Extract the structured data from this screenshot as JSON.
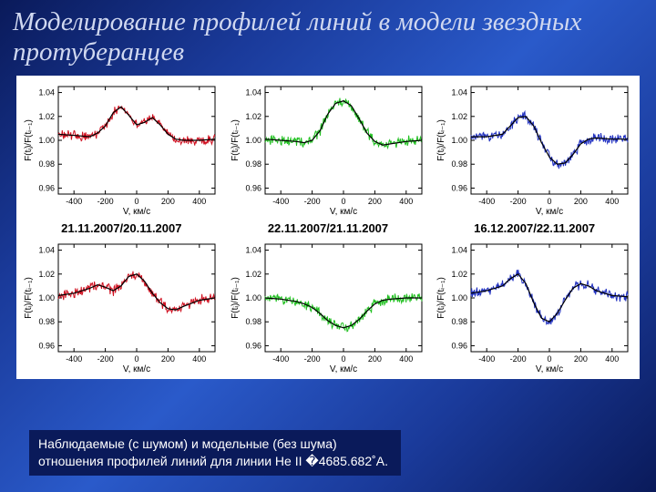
{
  "title": "Моделирование профилей линий в модели звездных протуберанцев",
  "caption": "Наблюдаемые (с шумом) и модельные (без шума) отношения профилей линий для линии He II �4685.682˚A.",
  "background_gradient": [
    "#0a1a5a",
    "#1a3a9a",
    "#2a5aca",
    "#1a3a9a",
    "#0a1a5a"
  ],
  "chart_grid": {
    "cols": 3,
    "rows": 2
  },
  "date_labels": [
    "21.11.2007/20.11.2007",
    "22.11.2007/21.11.2007",
    "16.12.2007/22.11.2007"
  ],
  "axes": {
    "xlabel": "V, км/с",
    "ylabel": "F(tᵢ)/F(tᵢ₋₁)",
    "xlim": [
      -500,
      500
    ],
    "ylim": [
      0.955,
      1.045
    ],
    "xticks": [
      -400,
      -200,
      0,
      200,
      400
    ],
    "yticks": [
      0.96,
      0.98,
      1.0,
      1.02,
      1.04
    ],
    "border_color": "#000000",
    "tick_fontsize": 9,
    "label_fontsize": 10,
    "font_family": "Arial, sans-serif"
  },
  "line_styles": {
    "noisy_width": 1.0,
    "model_width": 1.2,
    "model_color": "#000000"
  },
  "colors": {
    "col0": "#d01020",
    "col1": "#20c020",
    "col2": "#2030c0"
  },
  "panels": [
    {
      "id": "p00",
      "row": 0,
      "col": 0,
      "data_color": "#d01020",
      "model": [
        [
          -500,
          1.005
        ],
        [
          -380,
          1.004
        ],
        [
          -300,
          1.003
        ],
        [
          -250,
          1.006
        ],
        [
          -200,
          1.012
        ],
        [
          -150,
          1.023
        ],
        [
          -100,
          1.028
        ],
        [
          -50,
          1.021
        ],
        [
          0,
          1.013
        ],
        [
          50,
          1.015
        ],
        [
          100,
          1.019
        ],
        [
          150,
          1.013
        ],
        [
          200,
          1.005
        ],
        [
          250,
          1.001
        ],
        [
          300,
          1.0
        ],
        [
          400,
          1.0
        ],
        [
          500,
          1.001
        ]
      ]
    },
    {
      "id": "p01",
      "row": 0,
      "col": 1,
      "data_color": "#20c020",
      "model": [
        [
          -500,
          1.001
        ],
        [
          -400,
          1.0
        ],
        [
          -300,
          0.999
        ],
        [
          -250,
          0.998
        ],
        [
          -200,
          1.0
        ],
        [
          -150,
          1.008
        ],
        [
          -100,
          1.022
        ],
        [
          -50,
          1.031
        ],
        [
          0,
          1.033
        ],
        [
          50,
          1.029
        ],
        [
          100,
          1.018
        ],
        [
          150,
          1.006
        ],
        [
          200,
          0.999
        ],
        [
          250,
          0.996
        ],
        [
          300,
          0.997
        ],
        [
          400,
          0.999
        ],
        [
          500,
          1.0
        ]
      ]
    },
    {
      "id": "p02",
      "row": 0,
      "col": 2,
      "data_color": "#2030c0",
      "model": [
        [
          -500,
          1.003
        ],
        [
          -400,
          1.003
        ],
        [
          -300,
          1.005
        ],
        [
          -250,
          1.012
        ],
        [
          -200,
          1.019
        ],
        [
          -150,
          1.02
        ],
        [
          -100,
          1.012
        ],
        [
          -50,
          0.998
        ],
        [
          0,
          0.986
        ],
        [
          50,
          0.98
        ],
        [
          100,
          0.981
        ],
        [
          150,
          0.988
        ],
        [
          200,
          0.997
        ],
        [
          250,
          1.001
        ],
        [
          300,
          1.002
        ],
        [
          400,
          1.001
        ],
        [
          500,
          1.001
        ]
      ]
    },
    {
      "id": "p10",
      "row": 1,
      "col": 0,
      "data_color": "#d01020",
      "model": [
        [
          -500,
          1.002
        ],
        [
          -400,
          1.004
        ],
        [
          -300,
          1.008
        ],
        [
          -250,
          1.011
        ],
        [
          -200,
          1.009
        ],
        [
          -150,
          1.006
        ],
        [
          -100,
          1.01
        ],
        [
          -50,
          1.018
        ],
        [
          0,
          1.02
        ],
        [
          50,
          1.014
        ],
        [
          100,
          1.004
        ],
        [
          150,
          0.996
        ],
        [
          200,
          0.991
        ],
        [
          250,
          0.99
        ],
        [
          300,
          0.993
        ],
        [
          400,
          0.998
        ],
        [
          500,
          1.0
        ]
      ]
    },
    {
      "id": "p11",
      "row": 1,
      "col": 1,
      "data_color": "#20c020",
      "model": [
        [
          -500,
          1.0
        ],
        [
          -400,
          0.999
        ],
        [
          -300,
          0.997
        ],
        [
          -250,
          0.995
        ],
        [
          -200,
          0.992
        ],
        [
          -150,
          0.987
        ],
        [
          -100,
          0.981
        ],
        [
          -50,
          0.977
        ],
        [
          0,
          0.975
        ],
        [
          50,
          0.977
        ],
        [
          100,
          0.982
        ],
        [
          150,
          0.989
        ],
        [
          200,
          0.995
        ],
        [
          250,
          0.998
        ],
        [
          300,
          0.999
        ],
        [
          400,
          1.0
        ],
        [
          500,
          1.0
        ]
      ]
    },
    {
      "id": "p12",
      "row": 1,
      "col": 2,
      "data_color": "#2030c0",
      "model": [
        [
          -500,
          1.004
        ],
        [
          -400,
          1.006
        ],
        [
          -300,
          1.01
        ],
        [
          -250,
          1.016
        ],
        [
          -200,
          1.02
        ],
        [
          -150,
          1.012
        ],
        [
          -100,
          0.996
        ],
        [
          -50,
          0.983
        ],
        [
          0,
          0.98
        ],
        [
          50,
          0.987
        ],
        [
          100,
          0.998
        ],
        [
          150,
          1.008
        ],
        [
          200,
          1.012
        ],
        [
          250,
          1.01
        ],
        [
          300,
          1.006
        ],
        [
          400,
          1.002
        ],
        [
          500,
          1.001
        ]
      ]
    }
  ]
}
